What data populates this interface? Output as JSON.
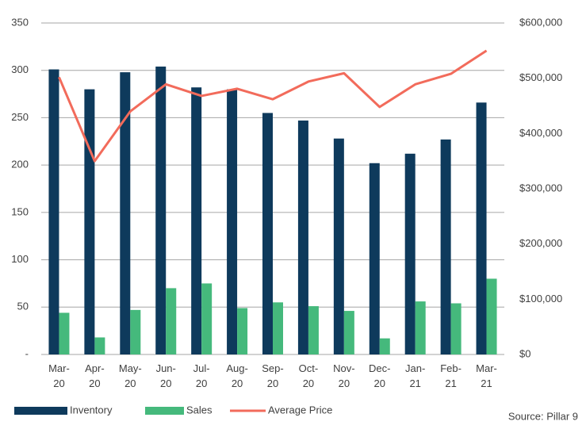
{
  "chart_data": {
    "type": "bar_line",
    "categories": [
      "Mar-20",
      "Apr-20",
      "May-20",
      "Jun-20",
      "Jul-20",
      "Aug-20",
      "Sep-20",
      "Oct-20",
      "Nov-20",
      "Dec-20",
      "Jan-21",
      "Feb-21",
      "Mar-21"
    ],
    "series": [
      {
        "name": "Inventory",
        "type": "bar",
        "color": "#0e3a5c",
        "values": [
          301,
          280,
          298,
          304,
          282,
          280,
          255,
          247,
          228,
          202,
          212,
          227,
          266
        ]
      },
      {
        "name": "Sales",
        "type": "bar",
        "color": "#45b97c",
        "values": [
          44,
          18,
          47,
          70,
          75,
          49,
          55,
          51,
          46,
          17,
          56,
          54,
          80
        ]
      },
      {
        "name": "Average Price",
        "type": "line",
        "axis": "y2",
        "color": "#f26b5b",
        "values": [
          502000,
          350000,
          440000,
          489000,
          468000,
          481000,
          462000,
          494000,
          509000,
          448000,
          489000,
          508000,
          550000
        ]
      }
    ],
    "ylim": [
      0,
      350
    ],
    "yticks": [
      {
        "value": 0,
        "label": "-"
      },
      50,
      100,
      150,
      200,
      250,
      300,
      350
    ],
    "y2lim": [
      0,
      600000
    ],
    "y2ticks": [
      {
        "value": 0,
        "label": "$0"
      },
      {
        "value": 100000,
        "label": "$100,000"
      },
      {
        "value": 200000,
        "label": "$200,000"
      },
      {
        "value": 300000,
        "label": "$300,000"
      },
      {
        "value": 400000,
        "label": "$400,000"
      },
      {
        "value": 500000,
        "label": "$500,000"
      },
      {
        "value": 600000,
        "label": "$600,000"
      }
    ],
    "grid": true,
    "legend": "bottom",
    "source": "Source: Pillar 9"
  }
}
